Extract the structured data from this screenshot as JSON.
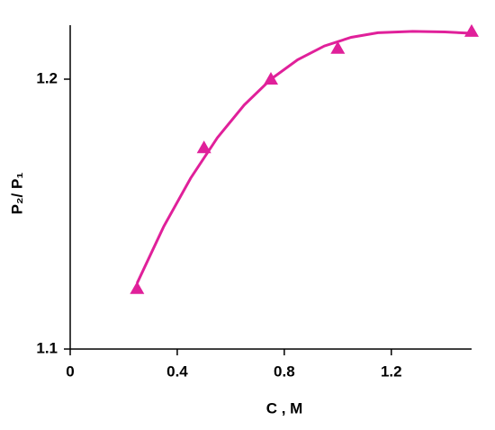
{
  "chart_data": {
    "type": "scatter",
    "xlabel": "C , M",
    "ylabel": "P₂/ P₁",
    "xlim": [
      0,
      1.5
    ],
    "ylim": [
      1.1,
      1.22
    ],
    "xticks": [
      0,
      0.4,
      0.8,
      1.2
    ],
    "yticks": [
      1.1,
      1.2
    ],
    "series": [
      {
        "color": "#e0209a",
        "x": [
          0.25,
          0.5,
          0.75,
          1.0,
          1.5
        ],
        "values": [
          1.1224,
          1.1746,
          1.2,
          1.2114,
          1.2177
        ]
      },
      {
        "type": "line",
        "color": "#e0209a",
        "x": [
          0.25,
          0.35,
          0.45,
          0.55,
          0.65,
          0.75,
          0.85,
          0.95,
          1.05,
          1.15,
          1.28,
          1.4,
          1.5
        ],
        "values": [
          1.1244,
          1.1455,
          1.1633,
          1.1783,
          1.1904,
          1.2,
          1.2072,
          1.2123,
          1.2155,
          1.2172,
          1.2177,
          1.2175,
          1.217
        ]
      }
    ]
  }
}
